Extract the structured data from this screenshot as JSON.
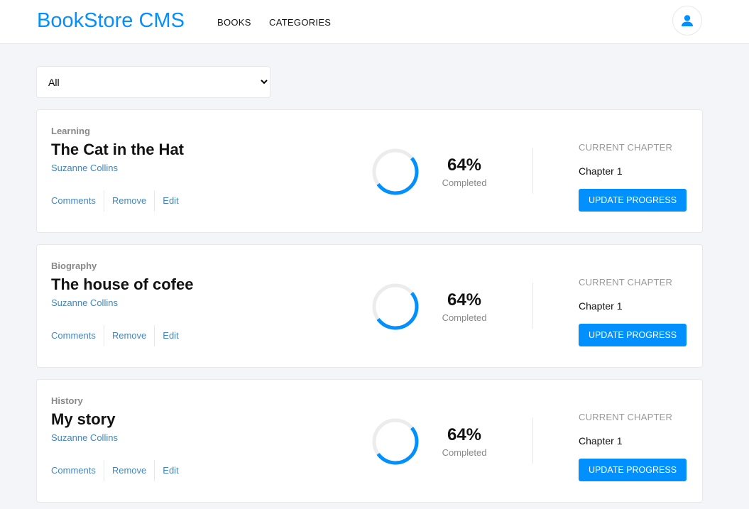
{
  "header": {
    "logo": "BookStore CMS",
    "nav": [
      "BOOKS",
      "CATEGORIES"
    ],
    "accent": "#0290ff"
  },
  "filter": {
    "selected": "All"
  },
  "books": [
    {
      "category": "Learning",
      "title": "The Cat in the Hat",
      "author": "Suzanne Collins",
      "actions": [
        "Comments",
        "Remove",
        "Edit"
      ],
      "percent": 64,
      "percent_label": "64%",
      "completed_label": "Completed",
      "chapter_label": "CURRENT CHAPTER",
      "chapter": "Chapter 1",
      "button": "UPDATE PROGRESS"
    },
    {
      "category": "Biography",
      "title": "The house of cofee",
      "author": "Suzanne Collins",
      "actions": [
        "Comments",
        "Remove",
        "Edit"
      ],
      "percent": 64,
      "percent_label": "64%",
      "completed_label": "Completed",
      "chapter_label": "CURRENT CHAPTER",
      "chapter": "Chapter 1",
      "button": "UPDATE PROGRESS"
    },
    {
      "category": "History",
      "title": "My story",
      "author": "Suzanne Collins",
      "actions": [
        "Comments",
        "Remove",
        "Edit"
      ],
      "percent": 64,
      "percent_label": "64%",
      "completed_label": "Completed",
      "chapter_label": "CURRENT CHAPTER",
      "chapter": "Chapter 1",
      "button": "UPDATE PROGRESS"
    }
  ]
}
